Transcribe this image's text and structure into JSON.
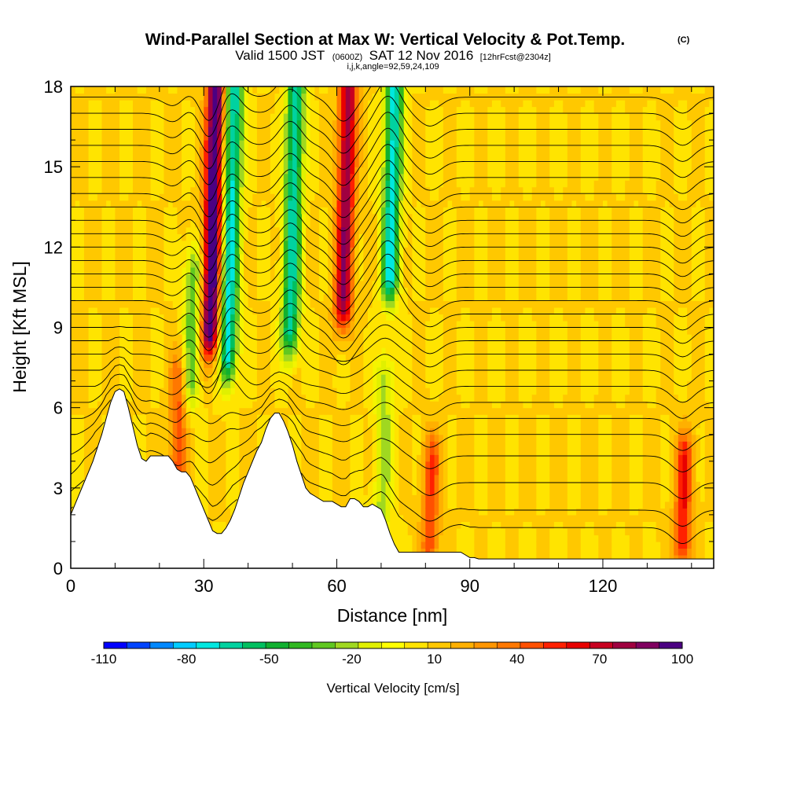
{
  "figure": {
    "title": "Wind-Parallel Section at Max W: Vertical Velocity & Pot.Temp.",
    "title_mark": "(C)",
    "subtitle_valid": "Valid 1500 JST",
    "subtitle_z": "(0600Z)",
    "subtitle_date": "SAT 12 Nov 2016",
    "subtitle_run": "[12hrFcst@2304z]",
    "indices": "i,j,k,angle=92,59,24,109"
  },
  "chart_data": {
    "type": "heatmap",
    "xlabel": "Distance [nm]",
    "ylabel": "Height [Kft MSL]",
    "xlim": [
      0,
      145
    ],
    "ylim": [
      0,
      18
    ],
    "x_ticks": [
      0,
      30,
      60,
      90,
      120
    ],
    "x_tick_labels": [
      "0",
      "30",
      "60",
      "90",
      "120"
    ],
    "y_ticks": [
      0,
      3,
      6,
      9,
      12,
      15,
      18
    ],
    "y_tick_labels": [
      "0",
      "3",
      "6",
      "9",
      "12",
      "15",
      "18"
    ],
    "colorbar": {
      "title": "Vertical Velocity [cm/s]",
      "tick_values": [
        -110,
        -80,
        -50,
        -20,
        10,
        40,
        70,
        100
      ],
      "tick_labels": [
        "-110",
        "-80",
        "-50",
        "-20",
        "10",
        "40",
        "70",
        "100"
      ],
      "colors": [
        "#0000ff",
        "#0044ff",
        "#0088ff",
        "#00ccff",
        "#00e8e0",
        "#00d2a0",
        "#00c060",
        "#10b030",
        "#30b820",
        "#60c820",
        "#a0d820",
        "#e0f000",
        "#ffff00",
        "#ffe400",
        "#ffc800",
        "#ffb000",
        "#ff9600",
        "#ff7800",
        "#ff5000",
        "#ff2000",
        "#e80000",
        "#c80020",
        "#a00040",
        "#800060",
        "#4b0082"
      ]
    },
    "terrain": {
      "x": [
        0,
        1,
        2,
        3,
        4,
        5,
        6,
        7,
        8,
        9,
        10,
        11,
        12,
        13,
        14,
        15,
        16,
        17,
        18,
        19,
        20,
        21,
        22,
        23,
        24,
        25,
        26,
        27,
        28,
        29,
        30,
        31,
        32,
        33,
        34,
        35,
        36,
        37,
        38,
        39,
        40,
        41,
        42,
        43,
        44,
        45,
        46,
        47,
        48,
        49,
        50,
        51,
        52,
        53,
        54,
        55,
        56,
        57,
        58,
        59,
        60,
        61,
        62,
        63,
        64,
        65,
        66,
        67,
        68,
        69,
        70,
        71,
        72,
        73,
        74,
        75,
        76,
        77,
        78,
        79,
        80,
        81,
        82,
        83,
        84,
        85,
        86,
        87,
        88,
        89,
        90,
        91,
        92,
        93,
        94,
        95,
        96,
        97,
        98,
        99,
        100,
        105,
        110,
        115,
        120,
        125,
        130,
        135,
        140,
        145
      ],
      "height": [
        2.0,
        2.4,
        2.8,
        3.2,
        3.6,
        4.0,
        4.5,
        5.0,
        5.6,
        6.2,
        6.6,
        6.7,
        6.6,
        6.0,
        5.3,
        4.6,
        4.1,
        4.0,
        4.2,
        4.2,
        4.2,
        4.2,
        4.2,
        4.0,
        3.7,
        3.6,
        3.6,
        3.4,
        3.0,
        2.6,
        2.2,
        1.8,
        1.4,
        1.3,
        1.3,
        1.5,
        1.8,
        2.2,
        2.7,
        3.2,
        3.6,
        4.0,
        4.4,
        4.7,
        5.2,
        5.6,
        5.8,
        5.8,
        5.5,
        5.1,
        4.6,
        4.0,
        3.5,
        3.0,
        2.8,
        2.7,
        2.6,
        2.5,
        2.5,
        2.5,
        2.4,
        2.3,
        2.3,
        2.6,
        2.6,
        2.5,
        2.3,
        2.3,
        2.4,
        2.3,
        2.2,
        1.8,
        1.3,
        0.9,
        0.6,
        0.6,
        0.6,
        0.6,
        0.6,
        0.6,
        0.6,
        0.6,
        0.6,
        0.6,
        0.6,
        0.6,
        0.6,
        0.6,
        0.6,
        0.5,
        0.4,
        0.4,
        0.35,
        0.35,
        0.35,
        0.35,
        0.35,
        0.35,
        0.35,
        0.35,
        0.35,
        0.35,
        0.35,
        0.35,
        0.35,
        0.35,
        0.35,
        0.35,
        0.35,
        0.35
      ]
    },
    "updraft_bands": [
      {
        "x": 31.5,
        "peak": 100,
        "alt_min": 9,
        "alt_max": 18
      },
      {
        "x": 61.5,
        "peak": 75,
        "alt_min": 10,
        "alt_max": 18
      },
      {
        "x": 24,
        "peak": 40,
        "alt_min": 3.5,
        "alt_max": 7
      },
      {
        "x": 81,
        "peak": 40,
        "alt_min": 1,
        "alt_max": 4
      },
      {
        "x": 138,
        "peak": 50,
        "alt_min": 1,
        "alt_max": 4
      }
    ],
    "downdraft_bands": [
      {
        "x": 35.5,
        "peak": -80,
        "alt_min": 8,
        "alt_max": 18
      },
      {
        "x": 49.5,
        "peak": -75,
        "alt_min": 9,
        "alt_max": 18
      },
      {
        "x": 72,
        "peak": -80,
        "alt_min": 11,
        "alt_max": 18
      },
      {
        "x": 27,
        "peak": -40,
        "alt_min": 7,
        "alt_max": 11
      },
      {
        "x": 70,
        "peak": -30,
        "alt_min": 1,
        "alt_max": 7
      }
    ],
    "isentrope_levels_kft": [
      1.0,
      2.0,
      3.2,
      4.2,
      5.0,
      5.6,
      6.2,
      6.8,
      7.4,
      8.0,
      8.5,
      9.0,
      9.5,
      10.0,
      10.5,
      11.0,
      11.5,
      12.0,
      12.5,
      13.0,
      13.5,
      14.0,
      14.6,
      15.2,
      15.8,
      16.4,
      17.0,
      17.6
    ]
  }
}
